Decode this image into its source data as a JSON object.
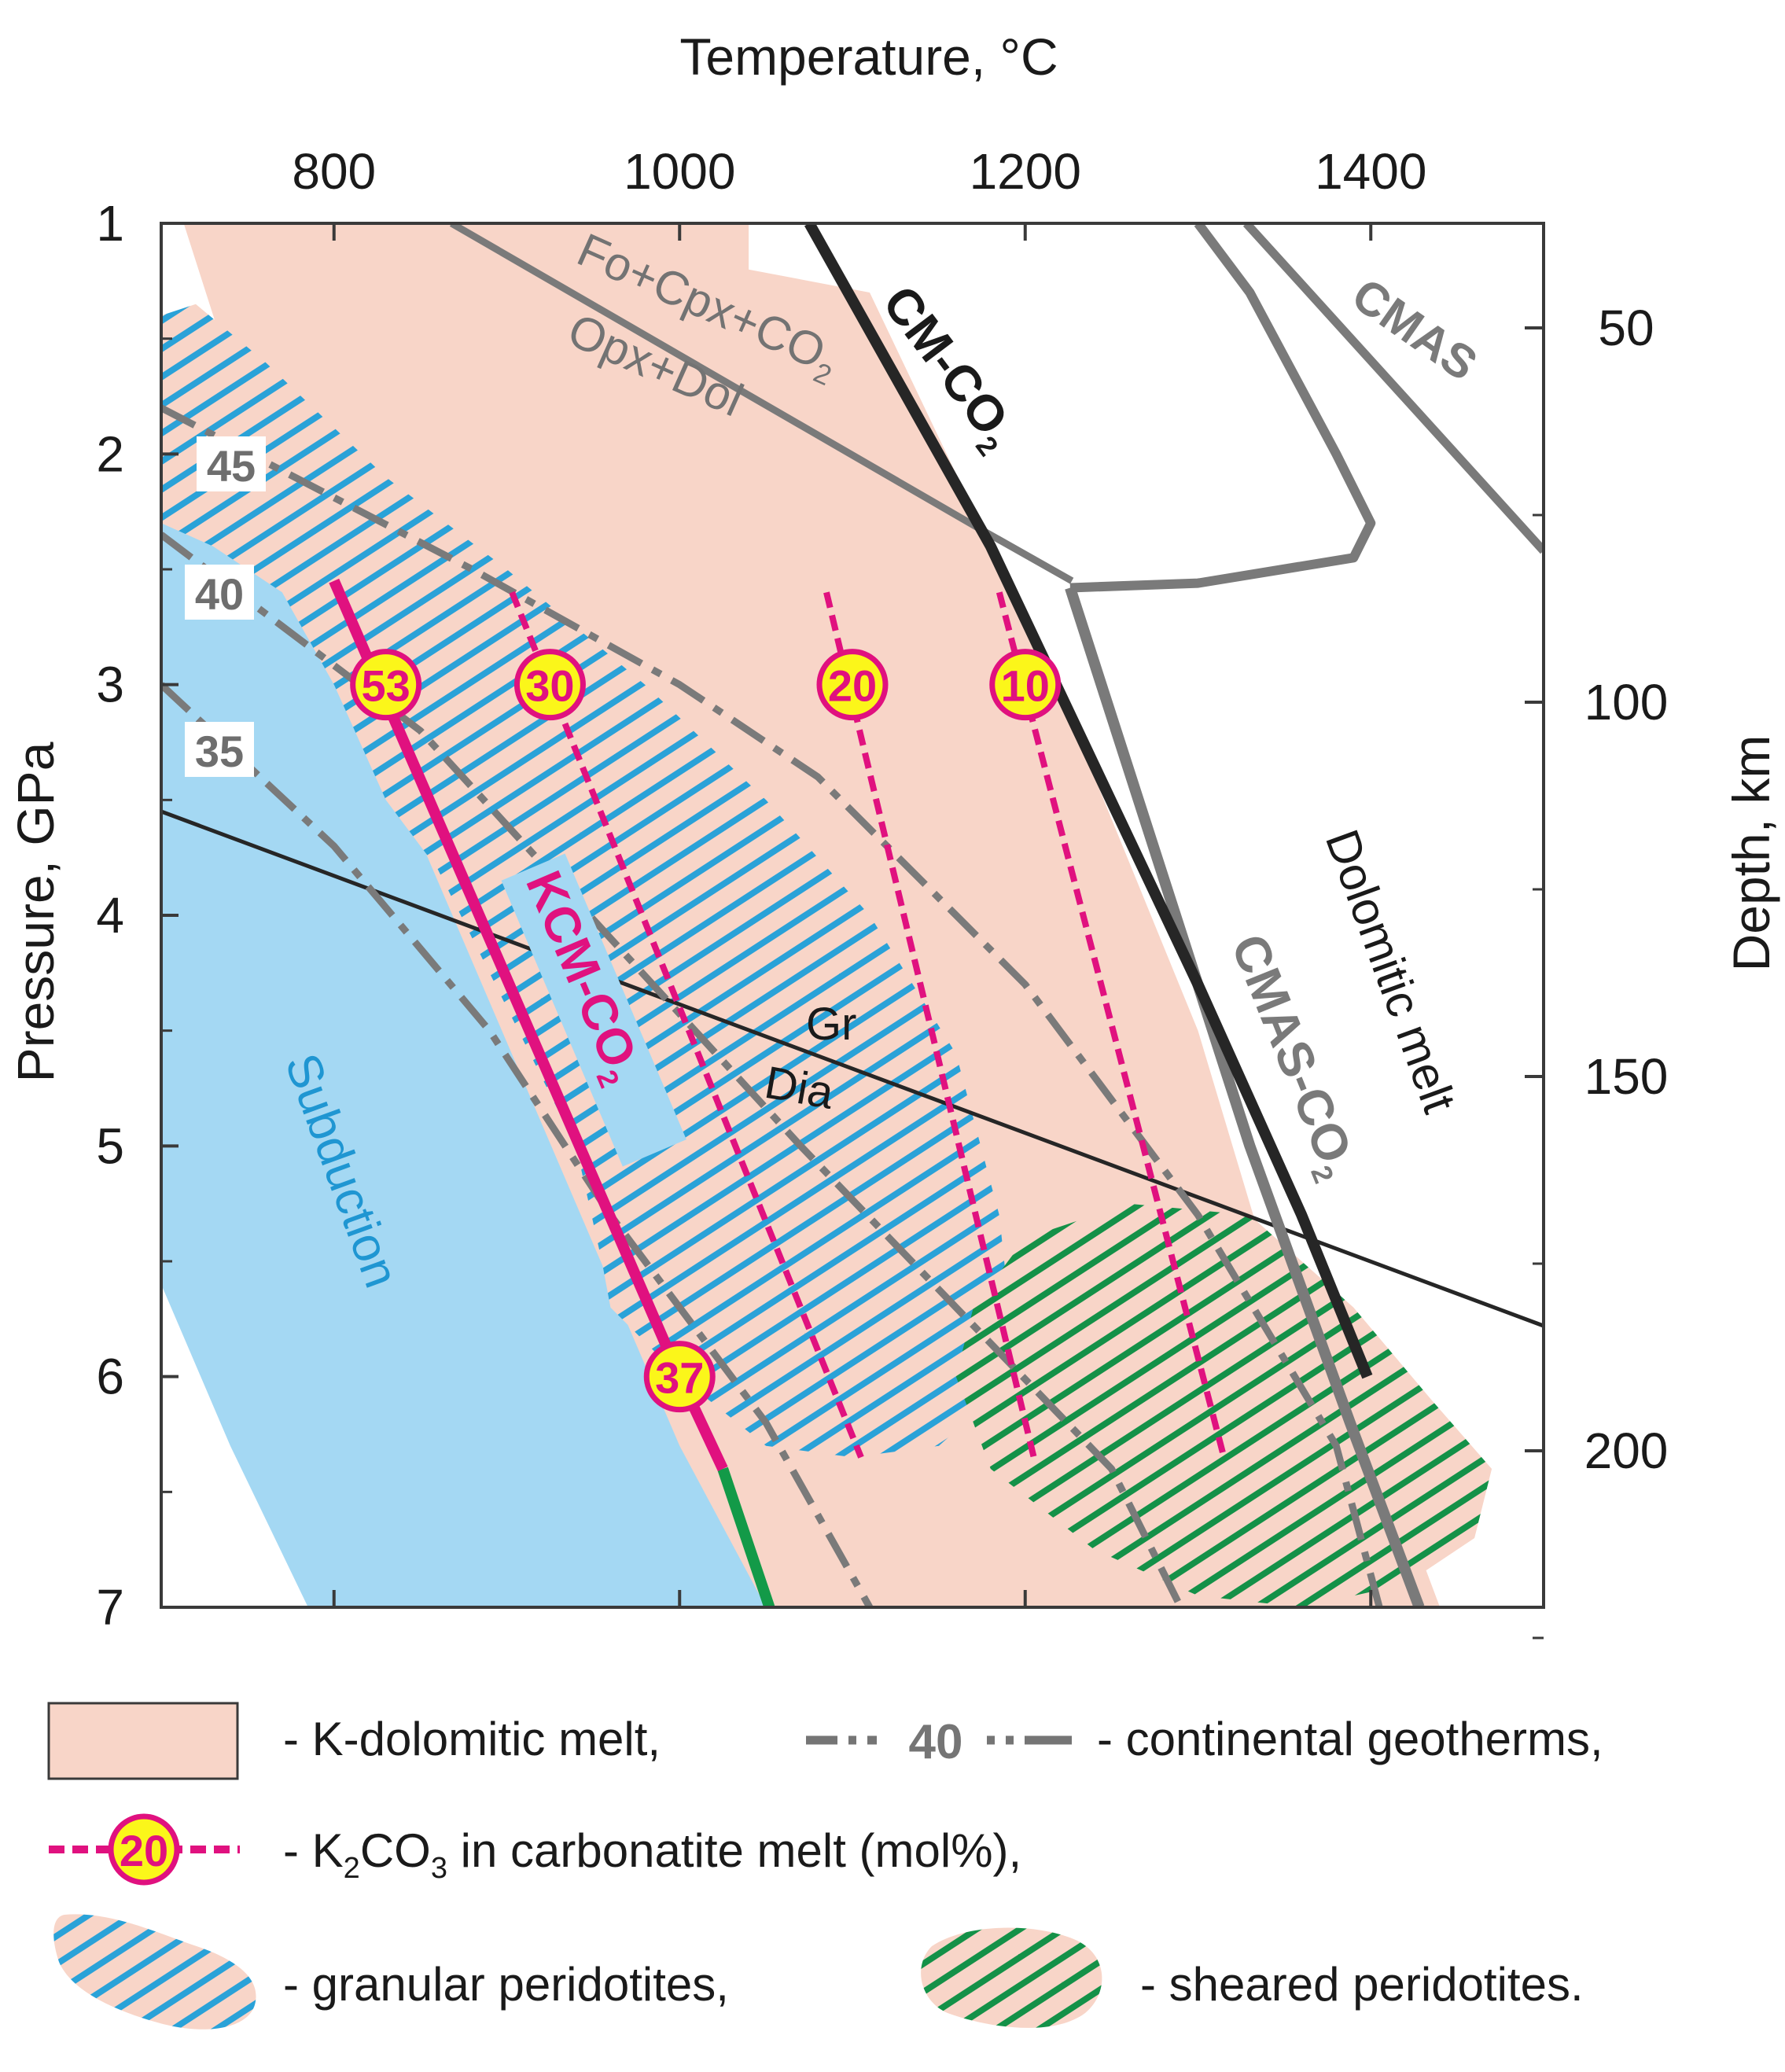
{
  "chart_data": {
    "type": "line",
    "title": "",
    "xlabel": "Temperature, °C",
    "ylabel": "Pressure, GPa",
    "y2label": "Depth, km",
    "xlim": [
      700,
      1500
    ],
    "ylim": [
      1,
      7
    ],
    "x_ticks": [
      800,
      1000,
      1200,
      1400
    ],
    "y_ticks": [
      1,
      2,
      3,
      4,
      5,
      6,
      7
    ],
    "depth_ticks": [
      50,
      100,
      150,
      200
    ],
    "grid": false,
    "colors": {
      "k_dolomitic_melt": "#f8d5c8",
      "subduction": "#a4d8f3",
      "k2co3": "#e0117f",
      "label_fill": "#fbf61a",
      "gray": "#7a7a7a",
      "dark": "#262626",
      "granular": "#2aa2d8",
      "sheared": "#149148",
      "subduction_green": "#139a48"
    },
    "regions": [
      {
        "name": "K-dolomitic melt",
        "points": [
          [
            713,
            1
          ],
          [
            1040,
            1
          ],
          [
            1040,
            1.2
          ],
          [
            1110,
            1.3
          ],
          [
            1180,
            2.4
          ],
          [
            1240,
            3.4
          ],
          [
            1300,
            4.5
          ],
          [
            1340,
            5.5
          ],
          [
            1375,
            6.2
          ],
          [
            1420,
            6.6
          ],
          [
            1440,
            7
          ],
          [
            1050,
            7
          ],
          [
            990,
            6.2
          ],
          [
            930,
            5.2
          ],
          [
            880,
            4.3
          ],
          [
            810,
            3.1
          ],
          [
            760,
            2.1
          ]
        ]
      },
      {
        "name": "Subduction",
        "points": [
          [
            700,
            1.7
          ],
          [
            730,
            1.5
          ],
          [
            770,
            2.2
          ],
          [
            800,
            2.8
          ],
          [
            840,
            3.5
          ],
          [
            880,
            4.2
          ],
          [
            920,
            4.9
          ],
          [
            960,
            5.6
          ],
          [
            1000,
            6.3
          ],
          [
            1050,
            7
          ],
          [
            785,
            7
          ],
          [
            740,
            6.3
          ],
          [
            700,
            5.6
          ]
        ]
      },
      {
        "name": "granular peridotites",
        "points": [
          [
            700,
            1.4
          ],
          [
            720,
            1.35
          ],
          [
            760,
            1.6
          ],
          [
            830,
            2.1
          ],
          [
            900,
            2.5
          ],
          [
            980,
            3.0
          ],
          [
            1050,
            3.5
          ],
          [
            1110,
            4.0
          ],
          [
            1160,
            4.6
          ],
          [
            1185,
            5.3
          ],
          [
            1195,
            6.0
          ],
          [
            1150,
            6.3
          ],
          [
            1100,
            6.35
          ],
          [
            1050,
            6.3
          ],
          [
            1000,
            6.0
          ],
          [
            960,
            5.7
          ],
          [
            955,
            5.5
          ],
          [
            940,
            5.0
          ],
          [
            900,
            4.4
          ],
          [
            860,
            3.8
          ],
          [
            830,
            3.5
          ],
          [
            800,
            3.0
          ],
          [
            770,
            2.6
          ],
          [
            730,
            2.4
          ],
          [
            700,
            2.3
          ]
        ]
      },
      {
        "name": "sheared peridotites",
        "points": [
          [
            1200,
            5.4
          ],
          [
            1260,
            5.25
          ],
          [
            1330,
            5.3
          ],
          [
            1390,
            5.7
          ],
          [
            1435,
            6.1
          ],
          [
            1470,
            6.4
          ],
          [
            1460,
            6.7
          ],
          [
            1420,
            6.9
          ],
          [
            1360,
            7.0
          ],
          [
            1300,
            6.95
          ],
          [
            1240,
            6.75
          ],
          [
            1180,
            6.4
          ],
          [
            1160,
            6.0
          ],
          [
            1170,
            5.7
          ]
        ]
      }
    ],
    "series": [
      {
        "name": "Fo+Cpx+CO2",
        "points": [
          [
            868,
            1
          ],
          [
            1175,
            2.33
          ],
          [
            1227,
            2.55
          ]
        ]
      },
      {
        "name": "CM-CO2",
        "points": [
          [
            1075,
            1
          ],
          [
            1180,
            2.4
          ],
          [
            1300,
            4.3
          ],
          [
            1360,
            5.3
          ],
          [
            1398,
            6.0
          ]
        ]
      },
      {
        "name": "CMAS-CO2",
        "points": [
          [
            1226,
            2.58
          ],
          [
            1330,
            5.0
          ],
          [
            1388,
            6.2
          ],
          [
            1428,
            7
          ]
        ]
      },
      {
        "name": "",
        "points": [
          [
            1226,
            2.58
          ],
          [
            1300,
            2.56
          ],
          [
            1390,
            2.45
          ],
          [
            1400,
            2.3
          ],
          [
            1380,
            2.0
          ],
          [
            1330,
            1.3
          ],
          [
            1300,
            1
          ]
        ]
      },
      {
        "name": "CMAS",
        "points": [
          [
            1328,
            1
          ],
          [
            1500,
            2.42
          ]
        ]
      },
      {
        "name": "Gr-Dia",
        "points": [
          [
            700,
            3.55
          ],
          [
            1500,
            5.78
          ]
        ]
      },
      {
        "name": "K2CO3 53-37",
        "values_mol_percent": [
          53,
          37
        ],
        "points": [
          [
            800,
            2.55
          ],
          [
            1000,
            6.0
          ],
          [
            1025,
            6.4
          ]
        ]
      },
      {
        "name": "",
        "points": [
          [
            1025,
            6.4
          ],
          [
            1052,
            7
          ]
        ]
      },
      {
        "name": "K2CO3 30",
        "values_mol_percent": 30,
        "points": [
          [
            903,
            2.6
          ],
          [
            1105,
            6.35
          ]
        ]
      },
      {
        "name": "K2CO3 20",
        "values_mol_percent": 20,
        "points": [
          [
            1085,
            2.6
          ],
          [
            1205,
            6.35
          ]
        ]
      },
      {
        "name": "K2CO3 10",
        "values_mol_percent": 10,
        "points": [
          [
            1185,
            2.6
          ],
          [
            1315,
            6.35
          ]
        ]
      },
      {
        "name": "geotherm 45",
        "points": [
          [
            700,
            1.8
          ],
          [
            880,
            2.5
          ],
          [
            1000,
            3.0
          ],
          [
            1080,
            3.4
          ],
          [
            1200,
            4.3
          ],
          [
            1300,
            5.3
          ],
          [
            1380,
            6.3
          ],
          [
            1405,
            7
          ]
        ]
      },
      {
        "name": "geotherm 40",
        "points": [
          [
            700,
            2.35
          ],
          [
            850,
            3.2
          ],
          [
            960,
            4.1
          ],
          [
            1070,
            5.0
          ],
          [
            1160,
            5.7
          ],
          [
            1250,
            6.4
          ],
          [
            1290,
            7
          ]
        ]
      },
      {
        "name": "geotherm 35",
        "points": [
          [
            700,
            3.0
          ],
          [
            800,
            3.7
          ],
          [
            890,
            4.5
          ],
          [
            960,
            5.3
          ],
          [
            1050,
            6.2
          ],
          [
            1110,
            7
          ]
        ]
      }
    ],
    "k2co3_markers": [
      {
        "label": "53",
        "x": 830,
        "y": 3.0
      },
      {
        "label": "30",
        "x": 925,
        "y": 3.0
      },
      {
        "label": "20",
        "x": 1100,
        "y": 3.0
      },
      {
        "label": "10",
        "x": 1200,
        "y": 3.0
      },
      {
        "label": "37",
        "x": 1000,
        "y": 6.0
      }
    ]
  },
  "annotations": {
    "fo_cpx_co2": "Fo+Cpx+CO",
    "fo_cpx_co2_sub": "2",
    "opx_dol": "Opx+Dol",
    "cm_co2": "CM-CO",
    "cm_co2_sub": "2",
    "cmas": "CMAS",
    "cmas_co2": "CMAS-CO",
    "cmas_co2_sub": "2",
    "dolomitic_melt": "Dolomitic melt",
    "kcm_co2": "KCM-CO",
    "kcm_co2_sub": "2",
    "gr": "Gr",
    "dia": "Dia",
    "subduction": "Subduction",
    "geotherm_45": "45",
    "geotherm_40": "40",
    "geotherm_35": "35"
  },
  "legend": {
    "k_dolomitic_melt": "- K-dolomitic melt,",
    "geotherm_value": "40",
    "continental_geotherms": "- continental geotherms,",
    "k2co3_marker": "20",
    "k2co3_prefix": "- K",
    "k2co3_sub1": "2",
    "k2co3_mid": "CO",
    "k2co3_sub2": "3",
    "k2co3_suffix": " in carbonatite melt  (mol%),",
    "granular": "- granular peridotites,",
    "sheared": "- sheared peridotites."
  }
}
